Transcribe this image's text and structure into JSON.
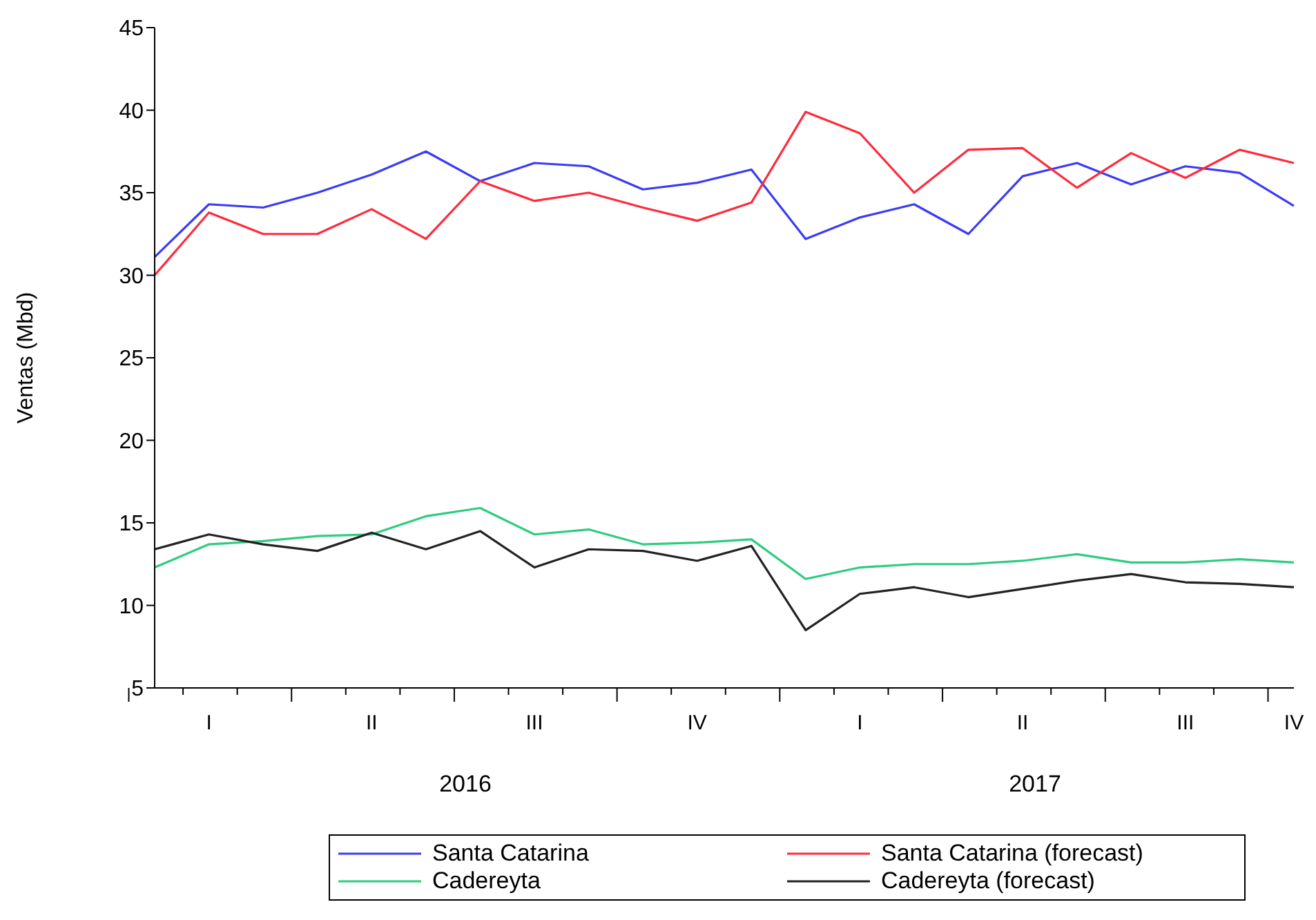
{
  "chart_data": {
    "type": "line",
    "ylabel": "Ventas (Mbd)",
    "categories": [
      null,
      "I",
      null,
      null,
      "II",
      null,
      null,
      "III",
      null,
      null,
      "IV",
      null,
      null,
      "I",
      null,
      null,
      "II",
      null,
      null,
      "III",
      null,
      "IV"
    ],
    "annotations": [
      "2016",
      "2017"
    ],
    "ylim": [
      5,
      45
    ],
    "yticks": [
      5,
      10,
      15,
      20,
      25,
      30,
      35,
      40,
      45
    ],
    "grid": false,
    "legend": "bottom",
    "marker": "none",
    "line_style": "solid",
    "series": [
      {
        "name": "Santa Catarina",
        "color": "#3b3bf5",
        "values": [
          31.1,
          34.3,
          34.1,
          35.0,
          36.1,
          37.5,
          35.7,
          36.8,
          36.6,
          35.2,
          35.6,
          36.4,
          32.2,
          33.5,
          34.3,
          32.5,
          36.0,
          36.8,
          35.5,
          36.6,
          36.2,
          34.2
        ]
      },
      {
        "name": "Santa Catarina (forecast)",
        "color": "#ff2a3a",
        "values": [
          30.0,
          33.8,
          32.5,
          32.5,
          34.0,
          32.2,
          35.7,
          34.5,
          35.0,
          34.1,
          33.3,
          34.4,
          39.9,
          38.6,
          35.0,
          37.6,
          37.7,
          35.3,
          37.4,
          35.9,
          37.6,
          36.8
        ]
      },
      {
        "name": "Cadereyta",
        "color": "#2ecc80",
        "values": [
          12.3,
          13.7,
          13.9,
          14.2,
          14.3,
          15.4,
          15.9,
          14.3,
          14.6,
          13.7,
          13.8,
          14.0,
          11.6,
          12.3,
          12.5,
          12.5,
          12.7,
          13.1,
          12.6,
          12.6,
          12.8,
          12.6
        ]
      },
      {
        "name": "Cadereyta (forecast)",
        "color": "#222222",
        "values": [
          13.4,
          14.3,
          13.7,
          13.3,
          14.4,
          13.4,
          14.5,
          12.3,
          13.4,
          13.3,
          12.7,
          13.6,
          8.5,
          10.7,
          11.1,
          10.5,
          11.0,
          11.5,
          11.9,
          11.4,
          11.3,
          11.1
        ]
      }
    ]
  }
}
